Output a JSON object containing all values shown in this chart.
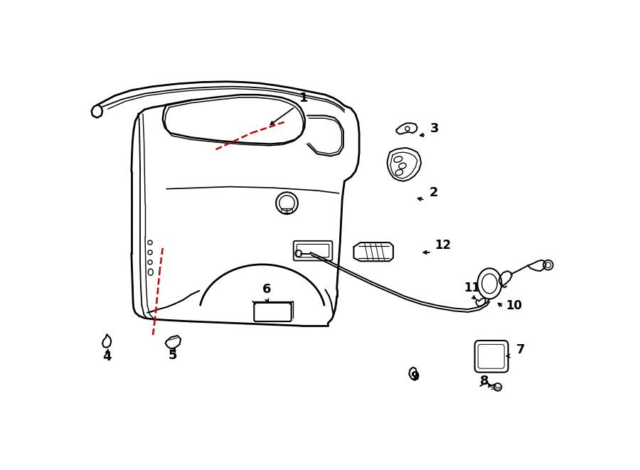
{
  "bg_color": "#ffffff",
  "line_color": "#000000",
  "red_color": "#cc0000"
}
